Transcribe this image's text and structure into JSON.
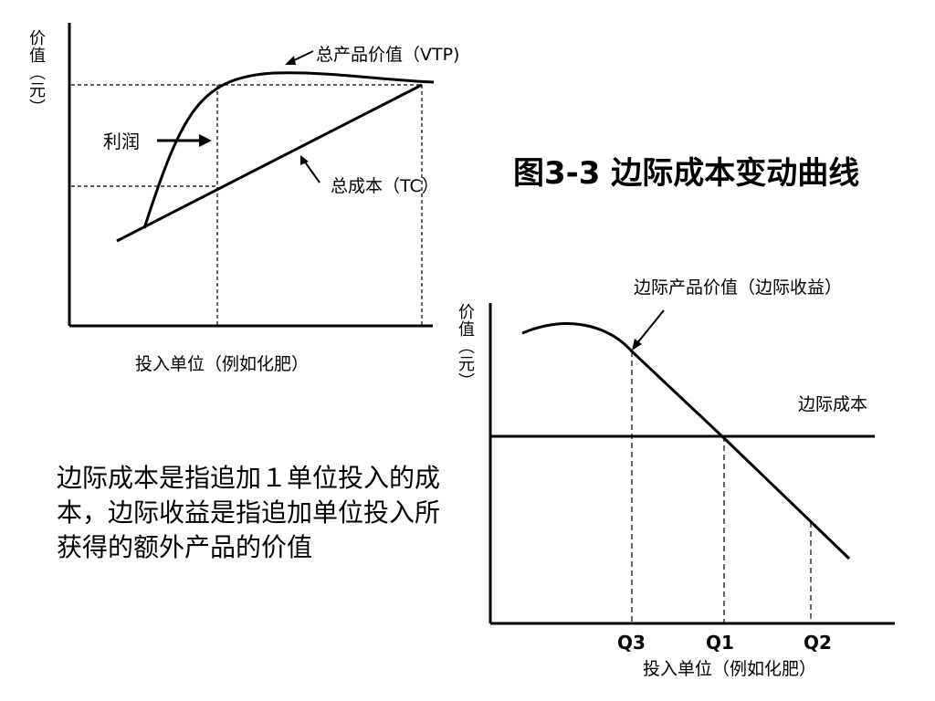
{
  "title": "图3-3 边际成本变动曲线",
  "chart_top": {
    "y_axis_label": "价值（元）",
    "x_axis_label": "投入单位（例如化肥）",
    "vtp_label": "总产品价值（VTP)",
    "tc_label": "总成本（TC）",
    "profit_label": "利润"
  },
  "chart_bottom": {
    "y_axis_label": "价值（元）",
    "x_axis_label": "投入单位（例如化肥）",
    "mvp_label": "边际产品价值（边际收益）",
    "mc_label": "边际成本",
    "ticks": [
      "Q3",
      "Q1",
      "Q2"
    ]
  },
  "description": "边际成本是指追加１单位投入的成本，边际收益是指追加单位投入所获得的额外产品的价值"
}
